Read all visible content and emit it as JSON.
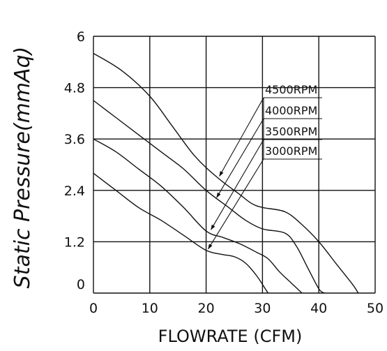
{
  "chart_data": {
    "type": "line",
    "title": "",
    "xlabel": "FLOWRATE (CFM)",
    "ylabel": "Static Pressure(mmAq)",
    "xlim": [
      0,
      50
    ],
    "ylim": [
      0,
      6
    ],
    "x_ticks": [
      "0",
      "10",
      "20",
      "30",
      "40",
      "50"
    ],
    "y_ticks": [
      "0",
      "1.2",
      "2.4",
      "3.6",
      "4.8",
      "6"
    ],
    "grid": true,
    "legend": "annotated labels with leader arrows",
    "series": [
      {
        "name": "4500RPM",
        "points": [
          [
            0,
            5.6
          ],
          [
            5,
            5.2
          ],
          [
            10,
            4.6
          ],
          [
            14,
            3.9
          ],
          [
            18,
            3.2
          ],
          [
            22,
            2.7
          ],
          [
            26,
            2.3
          ],
          [
            28,
            2.1
          ],
          [
            30,
            2.0
          ],
          [
            34,
            1.9
          ],
          [
            37,
            1.6
          ],
          [
            40,
            1.2
          ],
          [
            43,
            0.7
          ],
          [
            46,
            0.2
          ],
          [
            47,
            0
          ]
        ]
      },
      {
        "name": "4000RPM",
        "points": [
          [
            0,
            4.5
          ],
          [
            4,
            4.1
          ],
          [
            8,
            3.7
          ],
          [
            12,
            3.3
          ],
          [
            16,
            2.9
          ],
          [
            20,
            2.4
          ],
          [
            24,
            2.0
          ],
          [
            27,
            1.7
          ],
          [
            30,
            1.5
          ],
          [
            34,
            1.4
          ],
          [
            36,
            1.1
          ],
          [
            38,
            0.6
          ],
          [
            40,
            0.1
          ],
          [
            41,
            0
          ]
        ]
      },
      {
        "name": "3500RPM",
        "points": [
          [
            0,
            3.6
          ],
          [
            4,
            3.3
          ],
          [
            8,
            2.9
          ],
          [
            12,
            2.5
          ],
          [
            16,
            2.0
          ],
          [
            20,
            1.45
          ],
          [
            23,
            1.3
          ],
          [
            26,
            1.15
          ],
          [
            29,
            0.95
          ],
          [
            31,
            0.8
          ],
          [
            33,
            0.5
          ],
          [
            35,
            0.25
          ],
          [
            37,
            0
          ]
        ]
      },
      {
        "name": "3000RPM",
        "points": [
          [
            0,
            2.8
          ],
          [
            4,
            2.4
          ],
          [
            8,
            2.0
          ],
          [
            12,
            1.7
          ],
          [
            16,
            1.35
          ],
          [
            20,
            1.0
          ],
          [
            23,
            0.9
          ],
          [
            25,
            0.85
          ],
          [
            27,
            0.7
          ],
          [
            29,
            0.4
          ],
          [
            30.5,
            0.1
          ],
          [
            31,
            0
          ]
        ]
      }
    ],
    "legend_entries": [
      {
        "label": "4500RPM",
        "target": [
          22,
          2.7
        ]
      },
      {
        "label": "4000RPM",
        "target": [
          21.5,
          2.2
        ]
      },
      {
        "label": "3500RPM",
        "target": [
          20.5,
          1.45
        ]
      },
      {
        "label": "3000RPM",
        "target": [
          20,
          1.0
        ]
      }
    ]
  }
}
